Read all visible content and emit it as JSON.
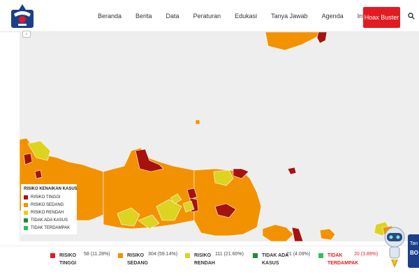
{
  "header": {
    "nav": [
      "Beranda",
      "Berita",
      "Data",
      "Peraturan",
      "Edukasi",
      "Tanya Jawab",
      "Agenda",
      "Info Lain"
    ],
    "hoax_button": "Hoax Buster",
    "icons": {
      "logo": "garuda-logo-icon",
      "search": "search-icon"
    }
  },
  "map": {
    "zoom_label": "-",
    "legend": {
      "title": "RISIKO KENAIKAN KASUS",
      "items": [
        {
          "label": "RISIKO TINGGI",
          "color": "#a6120d"
        },
        {
          "label": "RISIKO SEDANG",
          "color": "#f39200"
        },
        {
          "label": "RISIKO RENDAH",
          "color": "#ddd321"
        },
        {
          "label": "TIDAK ADA KASUS",
          "color": "#1f8a3b"
        },
        {
          "label": "TIDAK TERDAMPAK",
          "color": "#2fbf59"
        }
      ]
    },
    "colors": {
      "high": "#a6120d",
      "medium": "#f39200",
      "low": "#ddd321",
      "sea": "#eeeeee",
      "border": "#ffffff"
    }
  },
  "summary": [
    {
      "label1": "RISIKO",
      "label2": "TINGGI",
      "value": "58 (11.28%)",
      "color": "#e21b23"
    },
    {
      "label1": "RISIKO",
      "label2": "SEDANG",
      "value": "304 (59.14%)",
      "color": "#f39200"
    },
    {
      "label1": "RISIKO",
      "label2": "RENDAH",
      "value": "111 (21.60%)",
      "color": "#ddd321"
    },
    {
      "label1": "TIDAK ADA",
      "label2": "KASUS",
      "value": "21 (4.09%)",
      "color": "#1f8a3b"
    },
    {
      "label1": "TIDAK",
      "label2": "TERDAMPAK",
      "value": "20 (3.89%)",
      "color": "#2fbf59",
      "label_color": "#e21b23"
    }
  ],
  "chat": {
    "line1": "Tan",
    "line2": "BO"
  }
}
